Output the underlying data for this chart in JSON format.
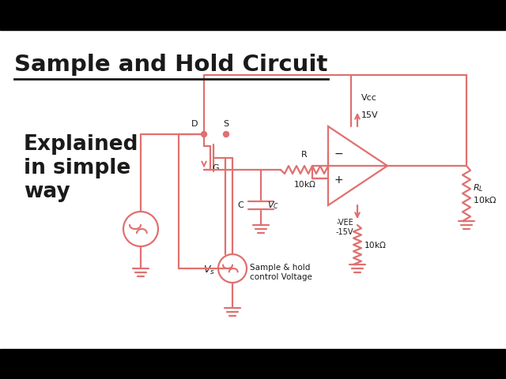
{
  "bg_color": "#ffffff",
  "circuit_color": "#e07070",
  "text_color": "#1a1a1a",
  "title": "Sample and Hold Circuit",
  "sub1": "Explained",
  "sub2": "in simple",
  "sub3": "way"
}
